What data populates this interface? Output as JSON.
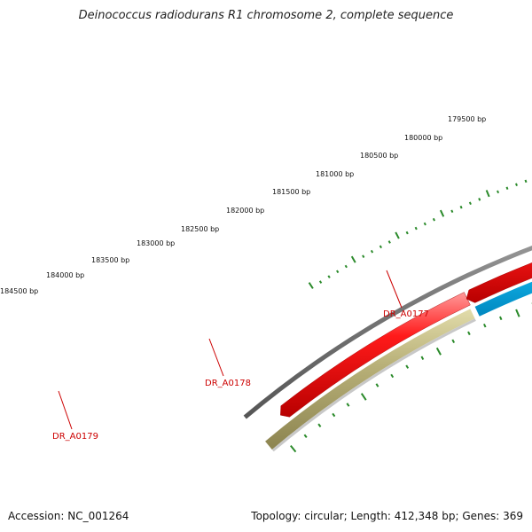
{
  "title": "Deinococcus radiodurans R1 chromosome 2, complete sequence",
  "footer": {
    "accession": "Accession: NC_001264",
    "summary": "Topology: circular; Length: 412,348 bp; Genes: 369"
  },
  "ruler": {
    "labels": [
      "179500 bp",
      "180000 bp",
      "180500 bp",
      "181000 bp",
      "181500 bp",
      "182000 bp",
      "182500 bp",
      "183000 bp",
      "183500 bp",
      "184000 bp",
      "184500 bp"
    ],
    "tick_color": "#2a8a2a"
  },
  "genes": [
    {
      "name": "DR_A0177",
      "color": "#00b4f0"
    },
    {
      "name": "DR_A0178",
      "color": "#00b4f0"
    },
    {
      "name": "DR_A0179",
      "color": "#b0a868"
    }
  ],
  "colors": {
    "backbone": "#7a7a7a",
    "cds_red": "#ee0000",
    "gene_blue": "#00b4f0",
    "gene_olive": "#b0a868",
    "label_red": "#cc0000"
  }
}
